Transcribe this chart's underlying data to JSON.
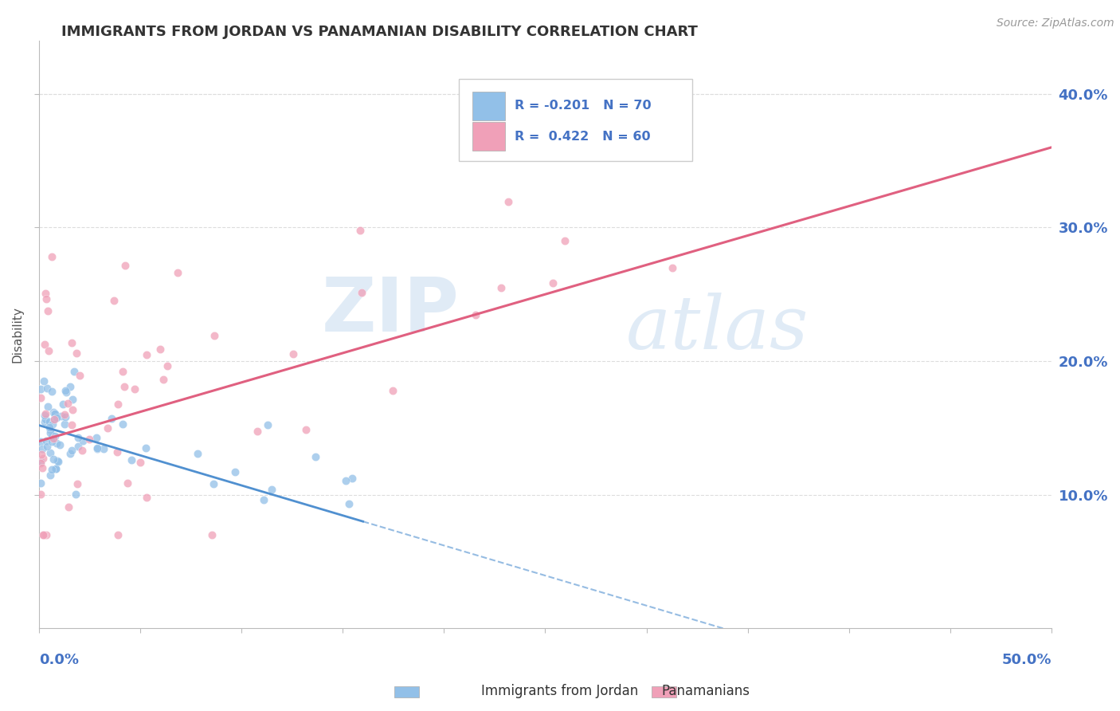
{
  "title": "IMMIGRANTS FROM JORDAN VS PANAMANIAN DISABILITY CORRELATION CHART",
  "source": "Source: ZipAtlas.com",
  "watermark_zip": "ZIP",
  "watermark_atlas": "atlas",
  "ylabel": "Disability",
  "xlim": [
    0.0,
    0.5
  ],
  "ylim": [
    0.0,
    0.44
  ],
  "yticks": [
    0.1,
    0.2,
    0.3,
    0.4
  ],
  "ytick_labels": [
    "10.0%",
    "20.0%",
    "30.0%",
    "40.0%"
  ],
  "xticks": [
    0.0,
    0.05,
    0.1,
    0.15,
    0.2,
    0.25,
    0.3,
    0.35,
    0.4,
    0.45,
    0.5
  ],
  "color_jordan": "#92C0E8",
  "color_panama": "#F0A0B8",
  "color_trend_jordan": "#5090D0",
  "color_trend_panama": "#E06080",
  "background_color": "#FFFFFF",
  "grid_color": "#DDDDDD",
  "title_color": "#333333",
  "axis_color": "#4472C4",
  "source_color": "#999999"
}
